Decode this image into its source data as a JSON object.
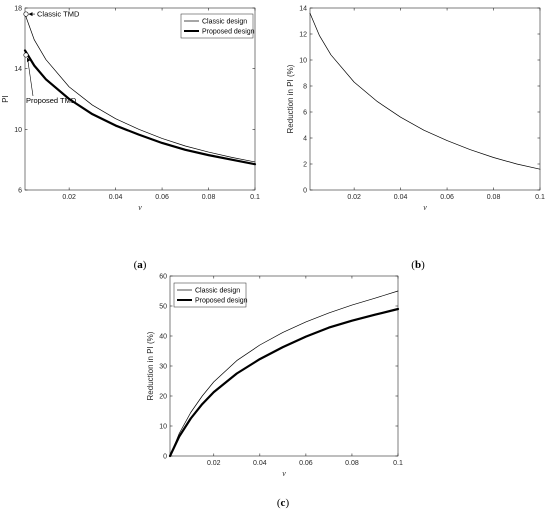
{
  "figure": {
    "captions": [
      {
        "open": "(",
        "letter": "a",
        "close": ")"
      },
      {
        "open": "(",
        "letter": "b",
        "close": ")"
      },
      {
        "open": "(",
        "letter": "c",
        "close": ")"
      }
    ]
  },
  "chart_data": [
    {
      "id": "a",
      "type": "line",
      "xlabel": "ν",
      "ylabel": "PI",
      "xlim": [
        0.001,
        0.1
      ],
      "ylim": [
        6,
        18
      ],
      "xticks": [
        0.02,
        0.04,
        0.06,
        0.08,
        0.1
      ],
      "xtick_labels": [
        "0.02",
        "0.04",
        "0.06",
        "0.08",
        "0.1"
      ],
      "yticks": [
        6,
        10,
        14,
        18
      ],
      "ytick_labels": [
        "6",
        "10",
        "14",
        "18"
      ],
      "legend": {
        "position": "top-right"
      },
      "series": [
        {
          "name": "Classic design",
          "style": "thin",
          "x": [
            0.001,
            0.005,
            0.01,
            0.02,
            0.03,
            0.04,
            0.05,
            0.06,
            0.07,
            0.08,
            0.09,
            0.1
          ],
          "y": [
            17.6,
            15.9,
            14.6,
            12.8,
            11.6,
            10.7,
            10.0,
            9.4,
            8.9,
            8.5,
            8.15,
            7.85
          ]
        },
        {
          "name": "Proposed design",
          "style": "thick",
          "x": [
            0.001,
            0.005,
            0.01,
            0.02,
            0.03,
            0.04,
            0.05,
            0.06,
            0.07,
            0.08,
            0.09,
            0.1
          ],
          "y": [
            15.2,
            14.2,
            13.3,
            12.0,
            11.0,
            10.25,
            9.65,
            9.1,
            8.65,
            8.3,
            8.0,
            7.7
          ]
        }
      ],
      "annotations": [
        {
          "text": "Classic TMD",
          "x": 0.001,
          "y": 17.6
        },
        {
          "text": "Proposed TMD",
          "x": 0.001,
          "y": 14.9
        }
      ]
    },
    {
      "id": "b",
      "type": "line",
      "xlabel": "ν",
      "ylabel": "Reduction in PI (%)",
      "xlim": [
        0.001,
        0.1
      ],
      "ylim": [
        0,
        14
      ],
      "xticks": [
        0.02,
        0.04,
        0.06,
        0.08,
        0.1
      ],
      "xtick_labels": [
        "0.02",
        "0.04",
        "0.06",
        "0.08",
        "0.1"
      ],
      "yticks": [
        0,
        2,
        4,
        6,
        8,
        10,
        12,
        14
      ],
      "ytick_labels": [
        "0",
        "2",
        "4",
        "6",
        "8",
        "10",
        "12",
        "14"
      ],
      "series": [
        {
          "style": "thin",
          "x": [
            0.001,
            0.005,
            0.01,
            0.02,
            0.03,
            0.04,
            0.05,
            0.06,
            0.07,
            0.08,
            0.09,
            0.1
          ],
          "y": [
            13.6,
            11.9,
            10.4,
            8.3,
            6.8,
            5.6,
            4.6,
            3.8,
            3.1,
            2.5,
            2.0,
            1.6
          ]
        }
      ]
    },
    {
      "id": "c",
      "type": "line",
      "xlabel": "ν",
      "ylabel": "Reduction in PI (%)",
      "xlim": [
        0.001,
        0.1
      ],
      "ylim": [
        0,
        60
      ],
      "xticks": [
        0.02,
        0.04,
        0.06,
        0.08,
        0.1
      ],
      "xtick_labels": [
        "0.02",
        "0.04",
        "0.06",
        "0.08",
        "0.1"
      ],
      "yticks": [
        0,
        10,
        20,
        30,
        40,
        50,
        60
      ],
      "ytick_labels": [
        "0",
        "10",
        "20",
        "30",
        "40",
        "50",
        "60"
      ],
      "legend": {
        "position": "top-left"
      },
      "series": [
        {
          "name": "Classic design",
          "style": "thin",
          "x": [
            0.001,
            0.005,
            0.01,
            0.015,
            0.02,
            0.03,
            0.04,
            0.05,
            0.06,
            0.07,
            0.08,
            0.09,
            0.1
          ],
          "y": [
            0,
            7.5,
            14.5,
            20.0,
            24.7,
            31.8,
            37.0,
            41.2,
            44.7,
            47.7,
            50.3,
            52.6,
            55.0
          ]
        },
        {
          "name": "Proposed design",
          "style": "thick",
          "x": [
            0.001,
            0.005,
            0.01,
            0.015,
            0.02,
            0.03,
            0.04,
            0.05,
            0.06,
            0.07,
            0.08,
            0.09,
            0.1
          ],
          "y": [
            0,
            6.5,
            12.5,
            17.3,
            21.3,
            27.5,
            32.3,
            36.3,
            39.8,
            42.8,
            45.1,
            47.1,
            49.0
          ]
        }
      ]
    }
  ]
}
